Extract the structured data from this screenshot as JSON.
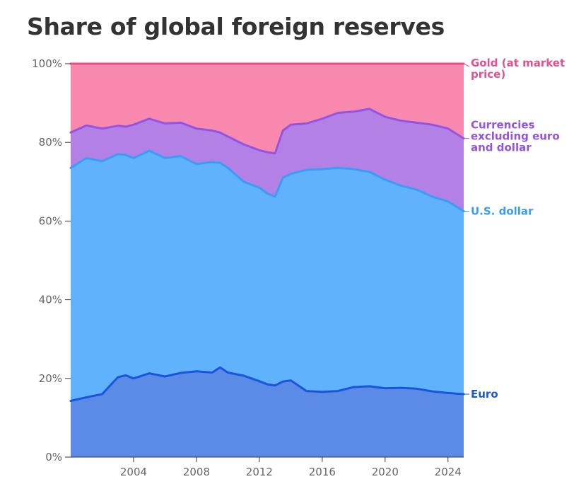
{
  "chart_data": {
    "type": "area",
    "stacked": true,
    "title": "Share of global foreign reserves",
    "xlim": [
      2000,
      2025
    ],
    "ylim": [
      0,
      100
    ],
    "yticks": [
      0,
      20,
      40,
      60,
      80,
      100
    ],
    "ytick_labels": [
      "0%",
      "20%",
      "40%",
      "60%",
      "80%",
      "100%"
    ],
    "xticks": [
      2004,
      2008,
      2012,
      2016,
      2020,
      2024
    ],
    "xtick_labels": [
      "2004",
      "2008",
      "2012",
      "2016",
      "2020",
      "2024"
    ],
    "grid": false,
    "legend": "direct labels at right end of series",
    "x": [
      2000.0,
      2001.0,
      2002.0,
      2003.0,
      2003.5,
      2004.0,
      2005.0,
      2006.0,
      2007.0,
      2008.0,
      2009.0,
      2009.5,
      2010.0,
      2011.0,
      2012.0,
      2012.5,
      2013.0,
      2013.5,
      2014.0,
      2015.0,
      2016.0,
      2017.0,
      2018.0,
      2019.0,
      2020.0,
      2021.0,
      2022.0,
      2023.0,
      2024.0,
      2025.0
    ],
    "series": [
      {
        "name": "Euro",
        "color": "#5b8be6",
        "line_color": "#1a56db",
        "values": [
          14.3,
          15.2,
          16.0,
          20.3,
          20.8,
          20.0,
          21.3,
          20.5,
          21.4,
          21.8,
          21.5,
          22.8,
          21.5,
          20.7,
          19.3,
          18.5,
          18.2,
          19.2,
          19.5,
          16.8,
          16.6,
          16.8,
          17.8,
          18.0,
          17.5,
          17.6,
          17.4,
          16.7,
          16.3,
          16.0
        ]
      },
      {
        "name": "U.S. dollar",
        "color": "#60b2fd",
        "line_color": "#3b9cf7",
        "values": [
          73.5,
          76.0,
          75.2,
          77.0,
          76.8,
          76.0,
          77.9,
          76.0,
          76.5,
          74.5,
          75.0,
          74.8,
          73.5,
          70.0,
          68.5,
          67.0,
          66.2,
          71.0,
          72.0,
          73.0,
          73.2,
          73.5,
          73.2,
          72.5,
          70.5,
          69.0,
          68.0,
          66.2,
          65.0,
          62.5
        ]
      },
      {
        "name": "Currencies excluding euro and dollar",
        "color": "#b381e6",
        "line_color": "#9454e0",
        "values": [
          82.5,
          84.3,
          83.5,
          84.2,
          84.0,
          84.5,
          86.0,
          84.8,
          85.0,
          83.5,
          83.0,
          82.5,
          81.5,
          79.5,
          78.0,
          77.5,
          77.2,
          83.0,
          84.5,
          84.8,
          86.0,
          87.5,
          87.8,
          88.5,
          86.5,
          85.5,
          85.0,
          84.5,
          83.5,
          81.0
        ]
      },
      {
        "name": "Gold (at market price)",
        "color": "#f888ae",
        "line_color": "#e6508c",
        "values": [
          100,
          100,
          100,
          100,
          100,
          100,
          100,
          100,
          100,
          100,
          100,
          100,
          100,
          100,
          100,
          100,
          100,
          100,
          100,
          100,
          100,
          100,
          100,
          100,
          100,
          100,
          100,
          100,
          100,
          100
        ]
      }
    ],
    "series_labels": [
      {
        "lines": [
          "Gold (at market",
          "price)"
        ],
        "color": "#e6508c"
      },
      {
        "lines": [
          "Currencies",
          "excluding euro",
          "and dollar"
        ],
        "color": "#9454e0"
      },
      {
        "lines": [
          "U.S. dollar"
        ],
        "color": "#3b9cf7"
      },
      {
        "lines": [
          "Euro"
        ],
        "color": "#1a56db"
      }
    ]
  }
}
